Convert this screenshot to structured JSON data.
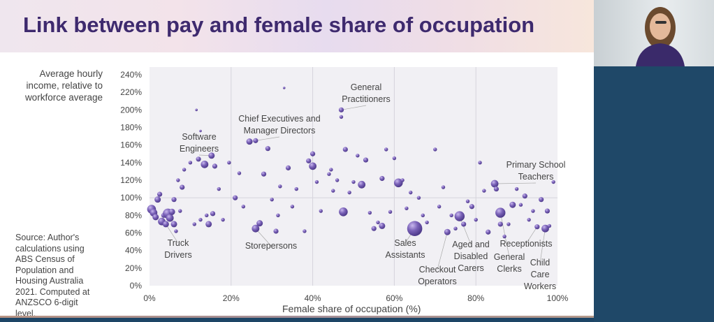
{
  "slide": {
    "title": "Link between pay and female share of occupation",
    "source_note": "Source: Author's calculations using ABS Census of Population and Housing Australia 2021. Computed at ANZSCO 6-digit level."
  },
  "colors": {
    "title": "#3e2a6e",
    "bubble": "#7a62b8",
    "bubble_dark": "#4e3a8a",
    "presenter_panel": "#1f4868"
  },
  "chart_data": {
    "type": "scatter",
    "title": "Link between pay and female share of occupation",
    "xlabel": "Female share of occupation (%)",
    "ylabel_lines": [
      "Average hourly",
      "income, relative to",
      "workforce average"
    ],
    "xlim": [
      0,
      100
    ],
    "ylim": [
      0,
      240
    ],
    "x_ticks": [
      "0%",
      "20%",
      "40%",
      "60%",
      "80%",
      "100%"
    ],
    "y_ticks": [
      "0%",
      "20%",
      "40%",
      "60%",
      "80%",
      "100%",
      "120%",
      "140%",
      "160%",
      "180%",
      "200%",
      "220%",
      "240%"
    ],
    "grid": {
      "vertical": true,
      "horizontal_at_100": true
    },
    "bubble_sized": true,
    "points": [
      [
        0.5,
        87,
        7
      ],
      [
        1,
        83,
        6
      ],
      [
        1.5,
        78,
        5
      ],
      [
        2,
        98,
        5
      ],
      [
        2.5,
        104,
        4
      ],
      [
        3,
        73,
        6
      ],
      [
        3.5,
        80,
        4
      ],
      [
        4,
        70,
        5
      ],
      [
        4.5,
        82,
        8
      ],
      [
        5,
        77,
        6
      ],
      [
        5.5,
        84,
        5
      ],
      [
        6,
        70,
        5
      ],
      [
        6,
        98,
        4
      ],
      [
        6.5,
        62,
        3
      ],
      [
        7,
        120,
        3
      ],
      [
        7.5,
        85,
        3
      ],
      [
        8,
        112,
        4
      ],
      [
        8.5,
        132,
        3
      ],
      [
        10,
        140,
        3
      ],
      [
        11,
        70,
        3
      ],
      [
        12,
        144,
        4
      ],
      [
        12.5,
        75,
        3
      ],
      [
        13.5,
        138,
        6
      ],
      [
        14,
        80,
        3
      ],
      [
        14.5,
        70,
        5
      ],
      [
        15.2,
        148,
        5
      ],
      [
        15.5,
        82,
        4
      ],
      [
        16,
        136,
        4
      ],
      [
        17,
        110,
        3
      ],
      [
        18,
        75,
        3
      ],
      [
        11.5,
        200,
        2
      ],
      [
        12.5,
        176,
        2
      ],
      [
        19.5,
        140,
        3
      ],
      [
        21,
        100,
        4
      ],
      [
        22,
        128,
        3
      ],
      [
        23,
        90,
        3
      ],
      [
        24.5,
        164,
        5
      ],
      [
        26,
        165,
        4
      ],
      [
        26,
        65,
        6
      ],
      [
        27,
        71,
        5
      ],
      [
        28,
        127,
        4
      ],
      [
        29,
        156,
        4
      ],
      [
        30,
        98,
        3
      ],
      [
        31,
        62,
        4
      ],
      [
        31.5,
        80,
        3
      ],
      [
        32,
        113,
        3
      ],
      [
        33,
        225,
        2
      ],
      [
        34,
        134,
        4
      ],
      [
        35,
        90,
        3
      ],
      [
        36,
        110,
        3
      ],
      [
        38,
        62,
        3
      ],
      [
        39,
        142,
        4
      ],
      [
        40,
        136,
        6
      ],
      [
        40,
        150,
        4
      ],
      [
        41,
        118,
        3
      ],
      [
        42,
        85,
        3
      ],
      [
        44,
        127,
        3
      ],
      [
        44.5,
        132,
        3
      ],
      [
        45,
        108,
        3
      ],
      [
        46,
        120,
        3
      ],
      [
        47,
        200,
        4
      ],
      [
        47,
        192,
        3
      ],
      [
        47.5,
        84,
        7
      ],
      [
        48,
        155,
        4
      ],
      [
        49,
        106,
        3
      ],
      [
        50,
        118,
        3
      ],
      [
        51,
        148,
        3
      ],
      [
        52,
        115,
        6
      ],
      [
        53,
        143,
        4
      ],
      [
        54,
        83,
        3
      ],
      [
        55,
        65,
        4
      ],
      [
        56,
        72,
        3
      ],
      [
        57,
        122,
        4
      ],
      [
        57,
        68,
        5
      ],
      [
        58,
        155,
        3
      ],
      [
        59,
        84,
        3
      ],
      [
        60,
        145,
        3
      ],
      [
        61,
        117,
        7
      ],
      [
        62,
        120,
        3
      ],
      [
        63,
        88,
        3
      ],
      [
        64,
        106,
        3
      ],
      [
        65,
        65,
        12
      ],
      [
        66,
        100,
        3
      ],
      [
        67,
        80,
        3
      ],
      [
        68,
        72,
        3
      ],
      [
        70,
        155,
        3
      ],
      [
        71,
        90,
        3
      ],
      [
        72,
        112,
        3
      ],
      [
        73,
        61,
        5
      ],
      [
        74,
        80,
        3
      ],
      [
        75,
        65,
        3
      ],
      [
        76,
        79,
        8
      ],
      [
        77,
        70,
        4
      ],
      [
        78,
        96,
        3
      ],
      [
        79,
        90,
        4
      ],
      [
        80,
        75,
        3
      ],
      [
        81,
        140,
        3
      ],
      [
        82,
        108,
        3
      ],
      [
        83,
        61,
        4
      ],
      [
        84.6,
        116,
        6
      ],
      [
        85,
        110,
        4
      ],
      [
        86,
        83,
        8
      ],
      [
        86,
        70,
        4
      ],
      [
        87,
        56,
        3
      ],
      [
        88,
        70,
        3
      ],
      [
        89,
        92,
        5
      ],
      [
        90,
        110,
        3
      ],
      [
        91,
        92,
        3
      ],
      [
        92,
        102,
        4
      ],
      [
        93,
        75,
        3
      ],
      [
        94,
        85,
        3
      ],
      [
        95,
        67,
        4
      ],
      [
        96,
        98,
        4
      ],
      [
        97,
        65,
        6
      ],
      [
        98,
        68,
        3
      ],
      [
        99,
        118,
        3
      ],
      [
        97.5,
        85,
        4
      ]
    ],
    "annotations": [
      {
        "text_lines": [
          "Software",
          "Engineers"
        ],
        "point": [
          15.2,
          148
        ]
      },
      {
        "text_lines": [
          "Chief Executives and",
          "Manager Directors"
        ],
        "point": [
          26,
          165
        ]
      },
      {
        "text_lines": [
          "General",
          "Practitioners"
        ],
        "point": [
          47,
          200
        ]
      },
      {
        "text_lines": [
          "Primary School",
          "Teachers"
        ],
        "point": [
          84.6,
          116
        ]
      },
      {
        "text_lines": [
          "Truck",
          "Drivers"
        ],
        "point": [
          4,
          70
        ]
      },
      {
        "text_lines": [
          "Storepersons"
        ],
        "point": [
          26,
          65
        ]
      },
      {
        "text_lines": [
          "Sales",
          "Assistants"
        ],
        "point": [
          65,
          65
        ]
      },
      {
        "text_lines": [
          "Checkout",
          "Operators"
        ],
        "point": [
          73,
          61
        ]
      },
      {
        "text_lines": [
          "Aged and",
          "Disabled",
          "Carers"
        ],
        "point": [
          76,
          79
        ]
      },
      {
        "text_lines": [
          "General",
          "Clerks"
        ],
        "point": [
          86,
          83
        ]
      },
      {
        "text_lines": [
          "Receptionists"
        ],
        "point": [
          95,
          67
        ]
      },
      {
        "text_lines": [
          "Child",
          "Care",
          "Workers"
        ],
        "point": [
          97,
          65
        ]
      }
    ]
  }
}
